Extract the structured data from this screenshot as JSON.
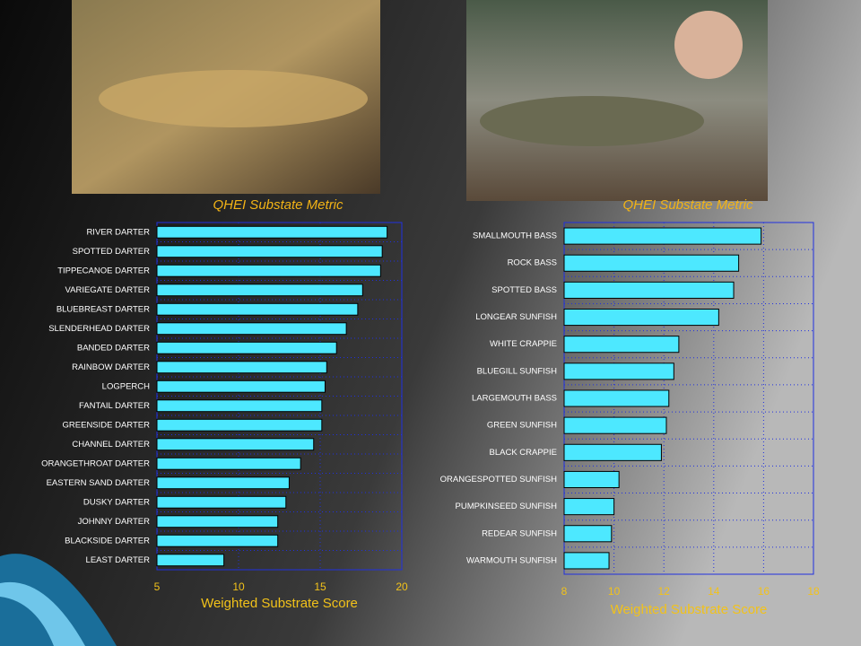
{
  "chart_data": [
    {
      "type": "bar",
      "orientation": "horizontal",
      "title": "QHEI Substate Metric",
      "x_label": "Weighted Substrate Score",
      "categories": [
        "RIVER DARTER",
        "SPOTTED DARTER",
        "TIPPECANOE DARTER",
        "VARIEGATE DARTER",
        "BLUEBREAST DARTER",
        "SLENDERHEAD DARTER",
        "BANDED DARTER",
        "RAINBOW DARTER",
        "LOGPERCH",
        "FANTAIL DARTER",
        "GREENSIDE DARTER",
        "CHANNEL DARTER",
        "ORANGETHROAT DARTER",
        "EASTERN SAND DARTER",
        "DUSKY DARTER",
        "JOHNNY DARTER",
        "BLACKSIDE DARTER",
        "LEAST DARTER"
      ],
      "values": [
        19.1,
        18.8,
        18.7,
        17.6,
        17.3,
        16.6,
        16.0,
        15.4,
        15.3,
        15.1,
        15.1,
        14.6,
        13.8,
        13.1,
        12.9,
        12.4,
        12.4,
        9.1
      ],
      "color": "#4de8ff",
      "xlim": [
        5,
        20
      ],
      "xticks": [
        5,
        10,
        15,
        20
      ],
      "grid": true
    },
    {
      "type": "bar",
      "orientation": "horizontal",
      "title": "QHEI Substate Metric",
      "x_label": "Weighted Substrate Score",
      "categories": [
        "SMALLMOUTH BASS",
        "ROCK BASS",
        "SPOTTED BASS",
        "LONGEAR SUNFISH",
        "WHITE CRAPPIE",
        "BLUEGILL SUNFISH",
        "LARGEMOUTH BASS",
        "GREEN SUNFISH",
        "BLACK CRAPPIE",
        "ORANGESPOTTED SUNFISH",
        "PUMPKINSEED SUNFISH",
        "REDEAR SUNFISH",
        "WARMOUTH SUNFISH"
      ],
      "values": [
        15.9,
        15.0,
        14.8,
        14.2,
        12.6,
        12.4,
        12.2,
        12.1,
        11.9,
        10.2,
        10.0,
        9.9,
        9.8
      ],
      "color": "#4de8ff",
      "xlim": [
        8,
        18
      ],
      "xticks": [
        8,
        10,
        12,
        14,
        16,
        18
      ],
      "grid": true
    }
  ]
}
